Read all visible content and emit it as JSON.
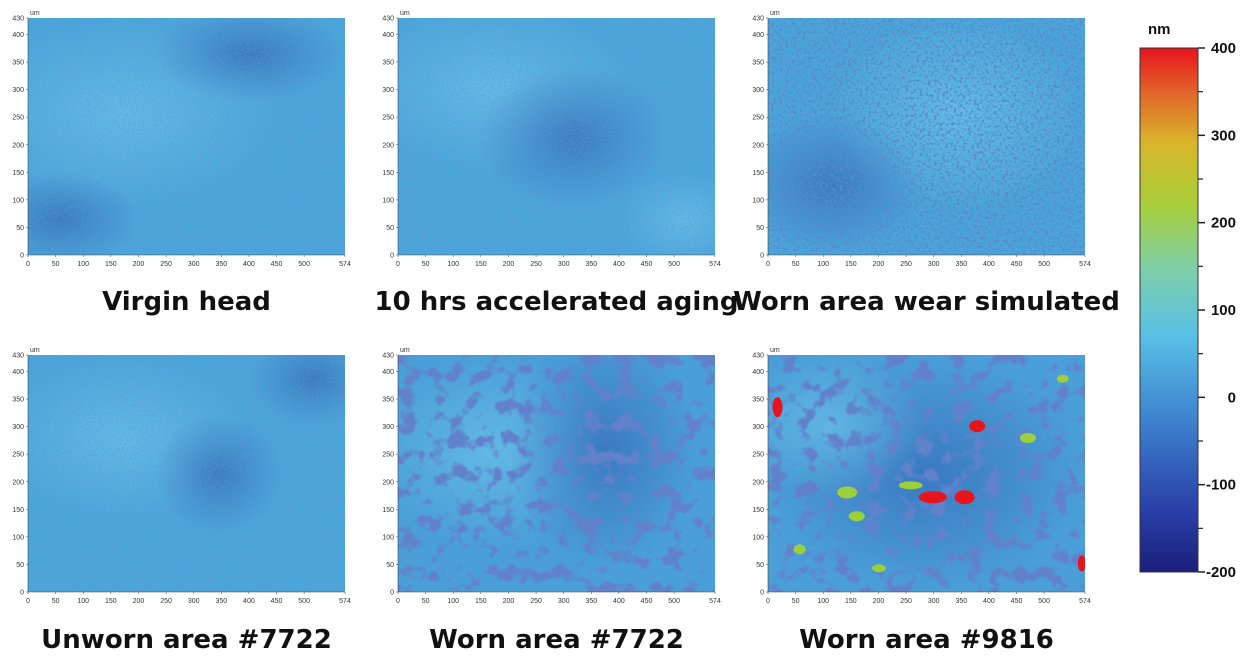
{
  "axes": {
    "unit": "um",
    "xticks": [
      0,
      50,
      100,
      150,
      200,
      250,
      300,
      350,
      400,
      450,
      500,
      574
    ],
    "yticks": [
      0,
      50,
      100,
      150,
      200,
      250,
      300,
      350,
      400,
      430
    ]
  },
  "panels": [
    {
      "caption": "Virgin head"
    },
    {
      "caption": "10 hrs accelerated aging"
    },
    {
      "caption": "Worn area wear simulated"
    },
    {
      "caption": "Unworn area #7722"
    },
    {
      "caption": "Worn area #7722"
    },
    {
      "caption": "Worn area #9816"
    }
  ],
  "colorbar": {
    "unit": "nm",
    "ticks": [
      400,
      300,
      200,
      100,
      0,
      -100,
      -200
    ]
  }
}
